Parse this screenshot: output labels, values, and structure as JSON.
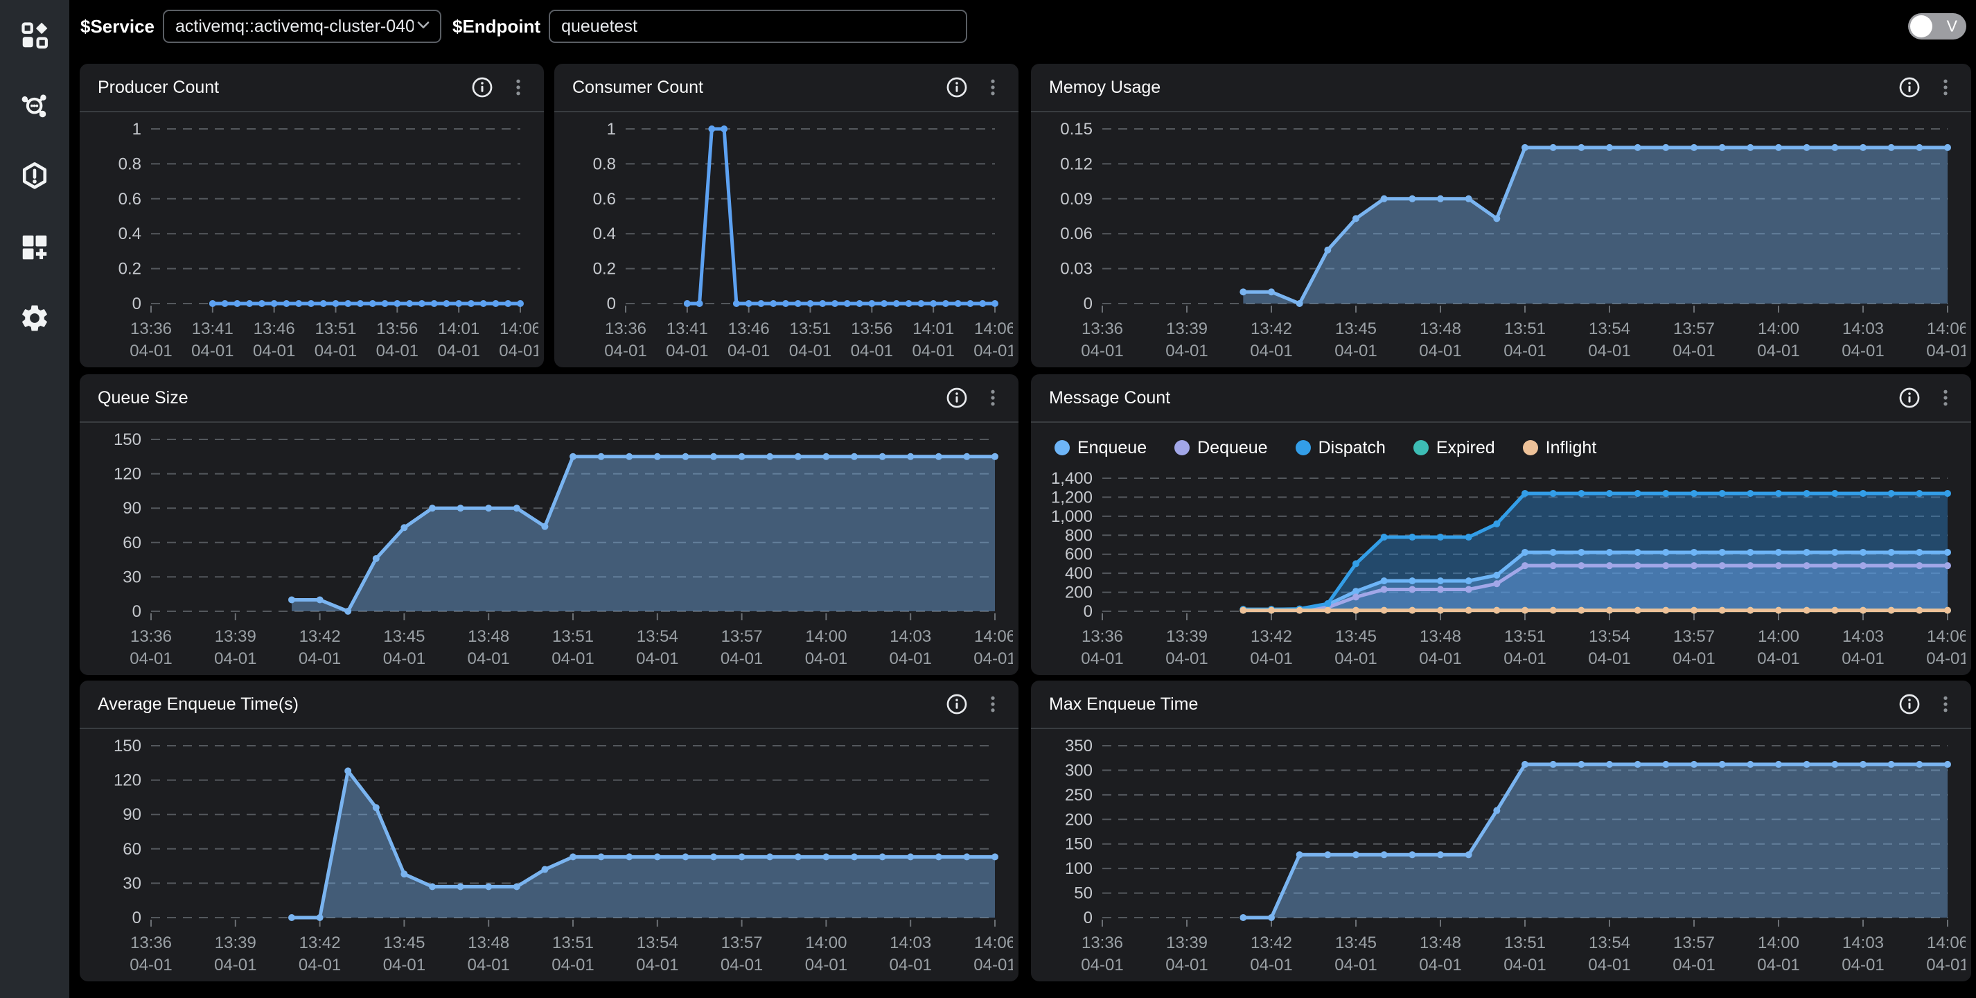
{
  "topbar": {
    "service_label": "$Service",
    "service_value": "activemq::activemq-cluster-040",
    "endpoint_label": "$Endpoint",
    "endpoint_value": "queuetest",
    "toggle_label": "V"
  },
  "sidebar": {
    "icons": [
      "dashboard-icon",
      "service-map-icon",
      "alert-hexagon-icon",
      "add-panel-icon",
      "settings-icon"
    ]
  },
  "colors": {
    "page_bg": "#000000",
    "sidebar_bg": "#262a2f",
    "panel_bg": "#1c1d20",
    "grid": "#54585d",
    "axis_label": "#c6c9ce",
    "x_label": "#9aa0a5",
    "line_blue": "#5da2f2",
    "enqueue": "#6eb5f7",
    "dequeue": "#a2a7e8",
    "dispatch": "#339ee8",
    "expired": "#3dbdb5",
    "inflight": "#eec299"
  },
  "panels": [
    {
      "title": "Producer Count",
      "chart_data": {
        "type": "line",
        "x_domain": [
          0,
          30
        ],
        "x_start": 5,
        "x_ticks": [
          0,
          5,
          10,
          15,
          20,
          25,
          30
        ],
        "x_tick_labels": [
          "13:36",
          "13:41",
          "13:46",
          "13:51",
          "13:56",
          "14:01",
          "14:06"
        ],
        "x_sub_label": "04-01",
        "ylim": [
          0,
          1
        ],
        "y_ticks": [
          0,
          0.2,
          0.4,
          0.6,
          0.8,
          1
        ],
        "y_tick_labels": [
          "0",
          "0.2",
          "0.4",
          "0.6",
          "0.8",
          "1"
        ],
        "series": [
          {
            "name": "Producer Count",
            "color": "#5da2f2",
            "fill": null,
            "values": [
              0,
              0,
              0,
              0,
              0,
              0,
              0,
              0,
              0,
              0,
              0,
              0,
              0,
              0,
              0,
              0,
              0,
              0,
              0,
              0,
              0,
              0,
              0,
              0,
              0,
              0
            ]
          }
        ]
      }
    },
    {
      "title": "Consumer Count",
      "chart_data": {
        "type": "line",
        "x_domain": [
          0,
          30
        ],
        "x_start": 5,
        "x_ticks": [
          0,
          5,
          10,
          15,
          20,
          25,
          30
        ],
        "x_tick_labels": [
          "13:36",
          "13:41",
          "13:46",
          "13:51",
          "13:56",
          "14:01",
          "14:06"
        ],
        "x_sub_label": "04-01",
        "ylim": [
          0,
          1
        ],
        "y_ticks": [
          0,
          0.2,
          0.4,
          0.6,
          0.8,
          1
        ],
        "y_tick_labels": [
          "0",
          "0.2",
          "0.4",
          "0.6",
          "0.8",
          "1"
        ],
        "series": [
          {
            "name": "Consumer Count",
            "color": "#5da2f2",
            "fill": null,
            "values": [
              0,
              0,
              1,
              1,
              0,
              0,
              0,
              0,
              0,
              0,
              0,
              0,
              0,
              0,
              0,
              0,
              0,
              0,
              0,
              0,
              0,
              0,
              0,
              0,
              0,
              0
            ]
          }
        ]
      }
    },
    {
      "title": "Memoy Usage",
      "chart_data": {
        "type": "area",
        "x_domain": [
          0,
          30
        ],
        "x_start": 5,
        "x_ticks": [
          0,
          3,
          6,
          9,
          12,
          15,
          18,
          21,
          24,
          27,
          30
        ],
        "x_tick_labels": [
          "13:36",
          "13:39",
          "13:42",
          "13:45",
          "13:48",
          "13:51",
          "13:54",
          "13:57",
          "14:00",
          "14:03",
          "14:06"
        ],
        "x_sub_label": "04-01",
        "ylim": [
          0,
          0.15
        ],
        "y_ticks": [
          0,
          0.03,
          0.06,
          0.09,
          0.12,
          0.15
        ],
        "y_tick_labels": [
          "0",
          "0.03",
          "0.06",
          "0.09",
          "0.12",
          "0.15"
        ],
        "series": [
          {
            "name": "Memory Usage",
            "color": "#7ab4f0",
            "fill": "rgba(122,180,240,0.42)",
            "values": [
              0.01,
              0.01,
              0,
              0.046,
              0.073,
              0.09,
              0.09,
              0.09,
              0.09,
              0.073,
              0.134,
              0.134,
              0.134,
              0.134,
              0.134,
              0.134,
              0.134,
              0.134,
              0.134,
              0.134,
              0.134,
              0.134,
              0.134,
              0.134,
              0.134,
              0.134
            ]
          }
        ]
      }
    },
    {
      "title": "Queue Size",
      "chart_data": {
        "type": "area",
        "x_domain": [
          0,
          30
        ],
        "x_start": 5,
        "x_ticks": [
          0,
          3,
          6,
          9,
          12,
          15,
          18,
          21,
          24,
          27,
          30
        ],
        "x_tick_labels": [
          "13:36",
          "13:39",
          "13:42",
          "13:45",
          "13:48",
          "13:51",
          "13:54",
          "13:57",
          "14:00",
          "14:03",
          "14:06"
        ],
        "x_sub_label": "04-01",
        "ylim": [
          0,
          150
        ],
        "y_ticks": [
          0,
          30,
          60,
          90,
          120,
          150
        ],
        "y_tick_labels": [
          "0",
          "30",
          "60",
          "90",
          "120",
          "150"
        ],
        "series": [
          {
            "name": "Queue Size",
            "color": "#7ab4f0",
            "fill": "rgba(122,180,240,0.42)",
            "values": [
              10,
              10,
              0,
              46,
              73,
              90,
              90,
              90,
              90,
              74,
              135,
              135,
              135,
              135,
              135,
              135,
              135,
              135,
              135,
              135,
              135,
              135,
              135,
              135,
              135,
              135
            ]
          }
        ]
      }
    },
    {
      "title": "Message Count",
      "has_legend": true,
      "chart_data": {
        "type": "area",
        "x_domain": [
          0,
          30
        ],
        "x_start": 5,
        "x_ticks": [
          0,
          3,
          6,
          9,
          12,
          15,
          18,
          21,
          24,
          27,
          30
        ],
        "x_tick_labels": [
          "13:36",
          "13:39",
          "13:42",
          "13:45",
          "13:48",
          "13:51",
          "13:54",
          "13:57",
          "14:00",
          "14:03",
          "14:06"
        ],
        "x_sub_label": "04-01",
        "ylim": [
          0,
          1400
        ],
        "y_ticks": [
          0,
          200,
          400,
          600,
          800,
          1000,
          1200,
          1400
        ],
        "y_tick_labels": [
          "0",
          "200",
          "400",
          "600",
          "800",
          "1,000",
          "1,200",
          "1,400"
        ],
        "legend_position": "top-left",
        "series": [
          {
            "name": "Enqueue",
            "color": "#6eb5f7",
            "fill": "rgba(122,180,240,0.40)",
            "values": [
              20,
              20,
              20,
              70,
              210,
              320,
              320,
              320,
              320,
              380,
              620,
              620,
              620,
              620,
              620,
              620,
              620,
              620,
              620,
              620,
              620,
              620,
              620,
              620,
              620,
              620
            ]
          },
          {
            "name": "Dequeue",
            "color": "#a2a7e8",
            "fill": "rgba(162,167,232,0.22)",
            "values": [
              10,
              10,
              10,
              40,
              150,
              230,
              230,
              230,
              230,
              290,
              480,
              480,
              480,
              480,
              480,
              480,
              480,
              480,
              480,
              480,
              480,
              480,
              480,
              480,
              480,
              480
            ]
          },
          {
            "name": "Dispatch",
            "color": "#339ee8",
            "fill": "rgba(47,140,220,0.40)",
            "values": [
              20,
              20,
              25,
              80,
              500,
              780,
              780,
              780,
              780,
              920,
              1240,
              1240,
              1240,
              1240,
              1240,
              1240,
              1240,
              1240,
              1240,
              1240,
              1240,
              1240,
              1240,
              1240,
              1240,
              1240
            ]
          },
          {
            "name": "Expired",
            "color": "#3dbdb5",
            "fill": null,
            "values": [
              10,
              10,
              10,
              10,
              10,
              10,
              10,
              10,
              10,
              10,
              10,
              10,
              10,
              10,
              10,
              10,
              10,
              10,
              10,
              10,
              10,
              10,
              10,
              10,
              10,
              10
            ]
          },
          {
            "name": "Inflight",
            "color": "#eec299",
            "fill": null,
            "values": [
              10,
              10,
              10,
              10,
              10,
              10,
              10,
              10,
              10,
              10,
              10,
              10,
              10,
              10,
              10,
              10,
              10,
              10,
              10,
              10,
              10,
              10,
              10,
              10,
              10,
              10
            ]
          }
        ]
      }
    },
    {
      "title": "Average Enqueue Time(s)",
      "chart_data": {
        "type": "area",
        "x_domain": [
          0,
          30
        ],
        "x_start": 5,
        "x_ticks": [
          0,
          3,
          6,
          9,
          12,
          15,
          18,
          21,
          24,
          27,
          30
        ],
        "x_tick_labels": [
          "13:36",
          "13:39",
          "13:42",
          "13:45",
          "13:48",
          "13:51",
          "13:54",
          "13:57",
          "14:00",
          "14:03",
          "14:06"
        ],
        "x_sub_label": "04-01",
        "ylim": [
          0,
          150
        ],
        "y_ticks": [
          0,
          30,
          60,
          90,
          120,
          150
        ],
        "y_tick_labels": [
          "0",
          "30",
          "60",
          "90",
          "120",
          "150"
        ],
        "series": [
          {
            "name": "Average Enqueue Time",
            "color": "#7ab4f0",
            "fill": "rgba(122,180,240,0.42)",
            "values": [
              0,
              0,
              128,
              96,
              38,
              27,
              27,
              27,
              27,
              42,
              53,
              53,
              53,
              53,
              53,
              53,
              53,
              53,
              53,
              53,
              53,
              53,
              53,
              53,
              53,
              53
            ]
          }
        ]
      }
    },
    {
      "title": "Max Enqueue Time",
      "chart_data": {
        "type": "area",
        "x_domain": [
          0,
          30
        ],
        "x_start": 5,
        "x_ticks": [
          0,
          3,
          6,
          9,
          12,
          15,
          18,
          21,
          24,
          27,
          30
        ],
        "x_tick_labels": [
          "13:36",
          "13:39",
          "13:42",
          "13:45",
          "13:48",
          "13:51",
          "13:54",
          "13:57",
          "14:00",
          "14:03",
          "14:06"
        ],
        "x_sub_label": "04-01",
        "ylim": [
          0,
          350
        ],
        "y_ticks": [
          0,
          50,
          100,
          150,
          200,
          250,
          300,
          350
        ],
        "y_tick_labels": [
          "0",
          "50",
          "100",
          "150",
          "200",
          "250",
          "300",
          "350"
        ],
        "series": [
          {
            "name": "Max Enqueue Time",
            "color": "#7ab4f0",
            "fill": "rgba(122,180,240,0.42)",
            "values": [
              0,
              0,
              128,
              128,
              128,
              128,
              128,
              128,
              128,
              218,
              312,
              312,
              312,
              312,
              312,
              312,
              312,
              312,
              312,
              312,
              312,
              312,
              312,
              312,
              312,
              312
            ]
          }
        ]
      }
    }
  ]
}
